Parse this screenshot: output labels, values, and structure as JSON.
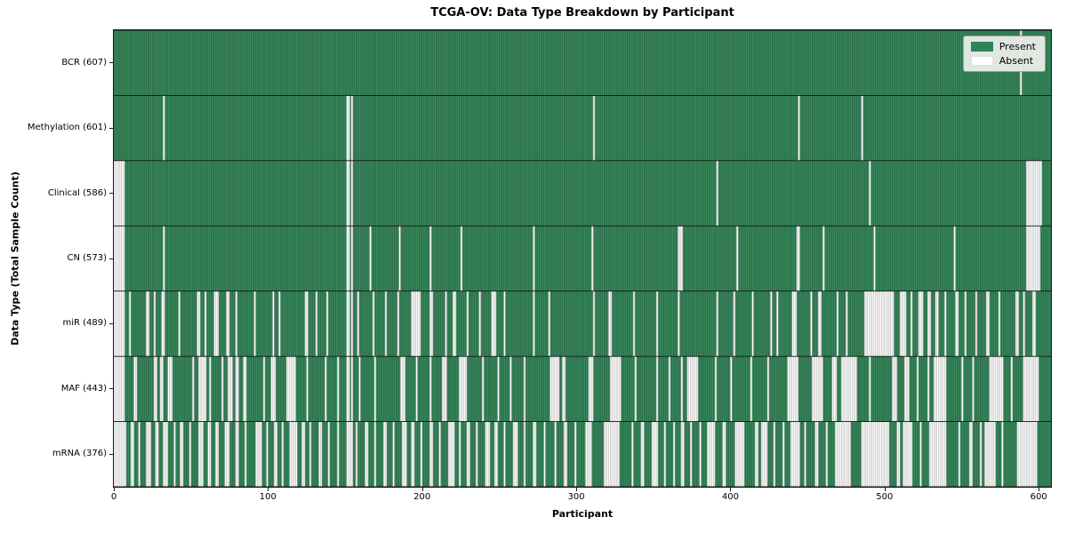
{
  "colors": {
    "present_fill": "#3a8a5e",
    "present_edge": "#215e3d",
    "absent_fill": "#ffffff",
    "absent_edge": "#adadad",
    "row_divider": "#141414",
    "plot_border": "#1a1a1a",
    "legend_swatch_present": "#2e8457"
  },
  "chart_data": {
    "type": "heatmap",
    "title": "TCGA-OV: Data Type Breakdown by Participant",
    "xlabel": "Participant",
    "ylabel": "Data Type (Total Sample Count)",
    "legend": {
      "present_label": "Present",
      "absent_label": "Absent",
      "position": "upper right"
    },
    "n_participants": 608,
    "x_ticks": [
      0,
      100,
      200,
      300,
      400,
      500,
      600
    ],
    "cell_states": [
      "Present",
      "Absent"
    ],
    "rows": [
      {
        "label": "BCR (607)",
        "name": "BCR",
        "present_count": 607,
        "absent_intervals": [
          [
            588,
            1
          ]
        ]
      },
      {
        "label": "Methylation (601)",
        "name": "Methylation",
        "present_count": 601,
        "absent_intervals": [
          [
            32,
            1
          ],
          [
            151,
            2
          ],
          [
            154,
            1
          ],
          [
            311,
            1
          ],
          [
            444,
            1
          ],
          [
            485,
            1
          ]
        ]
      },
      {
        "label": "Clinical (586)",
        "name": "Clinical",
        "present_count": 586,
        "absent_intervals": [
          [
            0,
            7
          ],
          [
            151,
            2
          ],
          [
            154,
            1
          ],
          [
            391,
            1
          ],
          [
            490,
            1
          ],
          [
            592,
            10
          ]
        ]
      },
      {
        "label": "CN (573)",
        "name": "CN",
        "present_count": 573,
        "absent_intervals": [
          [
            0,
            7
          ],
          [
            32,
            1
          ],
          [
            151,
            2
          ],
          [
            154,
            1
          ],
          [
            166,
            1
          ],
          [
            185,
            1
          ],
          [
            205,
            1
          ],
          [
            225,
            1
          ],
          [
            272,
            1
          ],
          [
            310,
            1
          ],
          [
            366,
            3
          ],
          [
            404,
            1
          ],
          [
            443,
            2
          ],
          [
            460,
            1
          ],
          [
            493,
            1
          ],
          [
            545,
            1
          ],
          [
            592,
            9
          ]
        ]
      },
      {
        "label": "miR (489)",
        "name": "miR",
        "present_count": 489,
        "absent_intervals": [
          [
            0,
            7
          ],
          [
            10,
            1
          ],
          [
            21,
            2
          ],
          [
            26,
            1
          ],
          [
            31,
            2
          ],
          [
            42,
            1
          ],
          [
            54,
            2
          ],
          [
            59,
            1
          ],
          [
            65,
            3
          ],
          [
            73,
            2
          ],
          [
            79,
            1
          ],
          [
            91,
            1
          ],
          [
            103,
            1
          ],
          [
            107,
            1
          ],
          [
            124,
            2
          ],
          [
            131,
            1
          ],
          [
            138,
            1
          ],
          [
            151,
            2
          ],
          [
            154,
            1
          ],
          [
            158,
            1
          ],
          [
            168,
            1
          ],
          [
            176,
            1
          ],
          [
            184,
            1
          ],
          [
            193,
            6
          ],
          [
            205,
            2
          ],
          [
            215,
            1
          ],
          [
            220,
            2
          ],
          [
            229,
            1
          ],
          [
            237,
            1
          ],
          [
            245,
            3
          ],
          [
            253,
            1
          ],
          [
            272,
            1
          ],
          [
            282,
            1
          ],
          [
            311,
            1
          ],
          [
            321,
            2
          ],
          [
            337,
            1
          ],
          [
            352,
            1
          ],
          [
            366,
            1
          ],
          [
            391,
            1
          ],
          [
            402,
            1
          ],
          [
            414,
            1
          ],
          [
            426,
            1
          ],
          [
            430,
            1
          ],
          [
            440,
            3
          ],
          [
            452,
            1
          ],
          [
            457,
            2
          ],
          [
            469,
            1
          ],
          [
            475,
            1
          ],
          [
            487,
            19
          ],
          [
            510,
            4
          ],
          [
            517,
            1
          ],
          [
            522,
            3
          ],
          [
            528,
            2
          ],
          [
            533,
            2
          ],
          [
            539,
            1
          ],
          [
            546,
            2
          ],
          [
            552,
            1
          ],
          [
            559,
            1
          ],
          [
            566,
            2
          ],
          [
            574,
            1
          ],
          [
            585,
            2
          ],
          [
            590,
            1
          ],
          [
            596,
            2
          ]
        ]
      },
      {
        "label": "MAF (443)",
        "name": "MAF",
        "present_count": 443,
        "absent_intervals": [
          [
            0,
            7
          ],
          [
            13,
            2
          ],
          [
            26,
            2
          ],
          [
            30,
            2
          ],
          [
            35,
            3
          ],
          [
            51,
            1
          ],
          [
            55,
            5
          ],
          [
            62,
            1
          ],
          [
            70,
            1
          ],
          [
            74,
            3
          ],
          [
            79,
            2
          ],
          [
            84,
            2
          ],
          [
            97,
            1
          ],
          [
            102,
            3
          ],
          [
            112,
            6
          ],
          [
            125,
            1
          ],
          [
            137,
            1
          ],
          [
            145,
            1
          ],
          [
            151,
            2
          ],
          [
            154,
            1
          ],
          [
            159,
            1
          ],
          [
            169,
            1
          ],
          [
            186,
            3
          ],
          [
            196,
            1
          ],
          [
            205,
            1
          ],
          [
            213,
            3
          ],
          [
            224,
            5
          ],
          [
            239,
            1
          ],
          [
            249,
            1
          ],
          [
            257,
            1
          ],
          [
            266,
            1
          ],
          [
            283,
            6
          ],
          [
            291,
            2
          ],
          [
            308,
            3
          ],
          [
            322,
            7
          ],
          [
            338,
            1
          ],
          [
            352,
            1
          ],
          [
            360,
            1
          ],
          [
            368,
            1
          ],
          [
            372,
            7
          ],
          [
            390,
            1
          ],
          [
            400,
            1
          ],
          [
            413,
            1
          ],
          [
            424,
            1
          ],
          [
            437,
            7
          ],
          [
            453,
            7
          ],
          [
            466,
            3
          ],
          [
            472,
            10
          ],
          [
            490,
            1
          ],
          [
            505,
            3
          ],
          [
            513,
            3
          ],
          [
            521,
            1
          ],
          [
            528,
            1
          ],
          [
            532,
            8
          ],
          [
            550,
            1
          ],
          [
            557,
            1
          ],
          [
            568,
            9
          ],
          [
            582,
            1
          ],
          [
            590,
            10
          ]
        ]
      },
      {
        "label": "mRNA (376)",
        "name": "mRNA",
        "present_count": 376,
        "absent_intervals": [
          [
            0,
            8
          ],
          [
            11,
            2
          ],
          [
            16,
            1
          ],
          [
            21,
            3
          ],
          [
            27,
            2
          ],
          [
            32,
            3
          ],
          [
            39,
            1
          ],
          [
            43,
            2
          ],
          [
            49,
            1
          ],
          [
            55,
            3
          ],
          [
            61,
            2
          ],
          [
            66,
            2
          ],
          [
            72,
            3
          ],
          [
            79,
            2
          ],
          [
            85,
            1
          ],
          [
            92,
            4
          ],
          [
            99,
            1
          ],
          [
            104,
            2
          ],
          [
            109,
            1
          ],
          [
            114,
            5
          ],
          [
            122,
            2
          ],
          [
            127,
            1
          ],
          [
            133,
            2
          ],
          [
            139,
            1
          ],
          [
            145,
            1
          ],
          [
            151,
            4
          ],
          [
            157,
            1
          ],
          [
            163,
            2
          ],
          [
            169,
            1
          ],
          [
            175,
            2
          ],
          [
            181,
            1
          ],
          [
            187,
            3
          ],
          [
            193,
            2
          ],
          [
            199,
            1
          ],
          [
            205,
            2
          ],
          [
            211,
            1
          ],
          [
            217,
            4
          ],
          [
            224,
            1
          ],
          [
            229,
            2
          ],
          [
            235,
            1
          ],
          [
            241,
            3
          ],
          [
            247,
            2
          ],
          [
            253,
            1
          ],
          [
            259,
            3
          ],
          [
            266,
            1
          ],
          [
            272,
            2
          ],
          [
            279,
            1
          ],
          [
            286,
            1
          ],
          [
            292,
            2
          ],
          [
            299,
            1
          ],
          [
            306,
            4
          ],
          [
            318,
            10
          ],
          [
            336,
            1
          ],
          [
            342,
            2
          ],
          [
            349,
            4
          ],
          [
            357,
            1
          ],
          [
            363,
            1
          ],
          [
            368,
            2
          ],
          [
            374,
            1
          ],
          [
            380,
            1
          ],
          [
            385,
            5
          ],
          [
            395,
            2
          ],
          [
            403,
            6
          ],
          [
            416,
            2
          ],
          [
            420,
            4
          ],
          [
            428,
            1
          ],
          [
            434,
            1
          ],
          [
            439,
            6
          ],
          [
            448,
            1
          ],
          [
            455,
            2
          ],
          [
            462,
            1
          ],
          [
            468,
            10
          ],
          [
            485,
            18
          ],
          [
            508,
            2
          ],
          [
            512,
            6
          ],
          [
            523,
            1
          ],
          [
            529,
            11
          ],
          [
            548,
            1
          ],
          [
            555,
            2
          ],
          [
            562,
            1
          ],
          [
            565,
            7
          ],
          [
            576,
            1
          ],
          [
            586,
            13
          ]
        ]
      }
    ]
  }
}
